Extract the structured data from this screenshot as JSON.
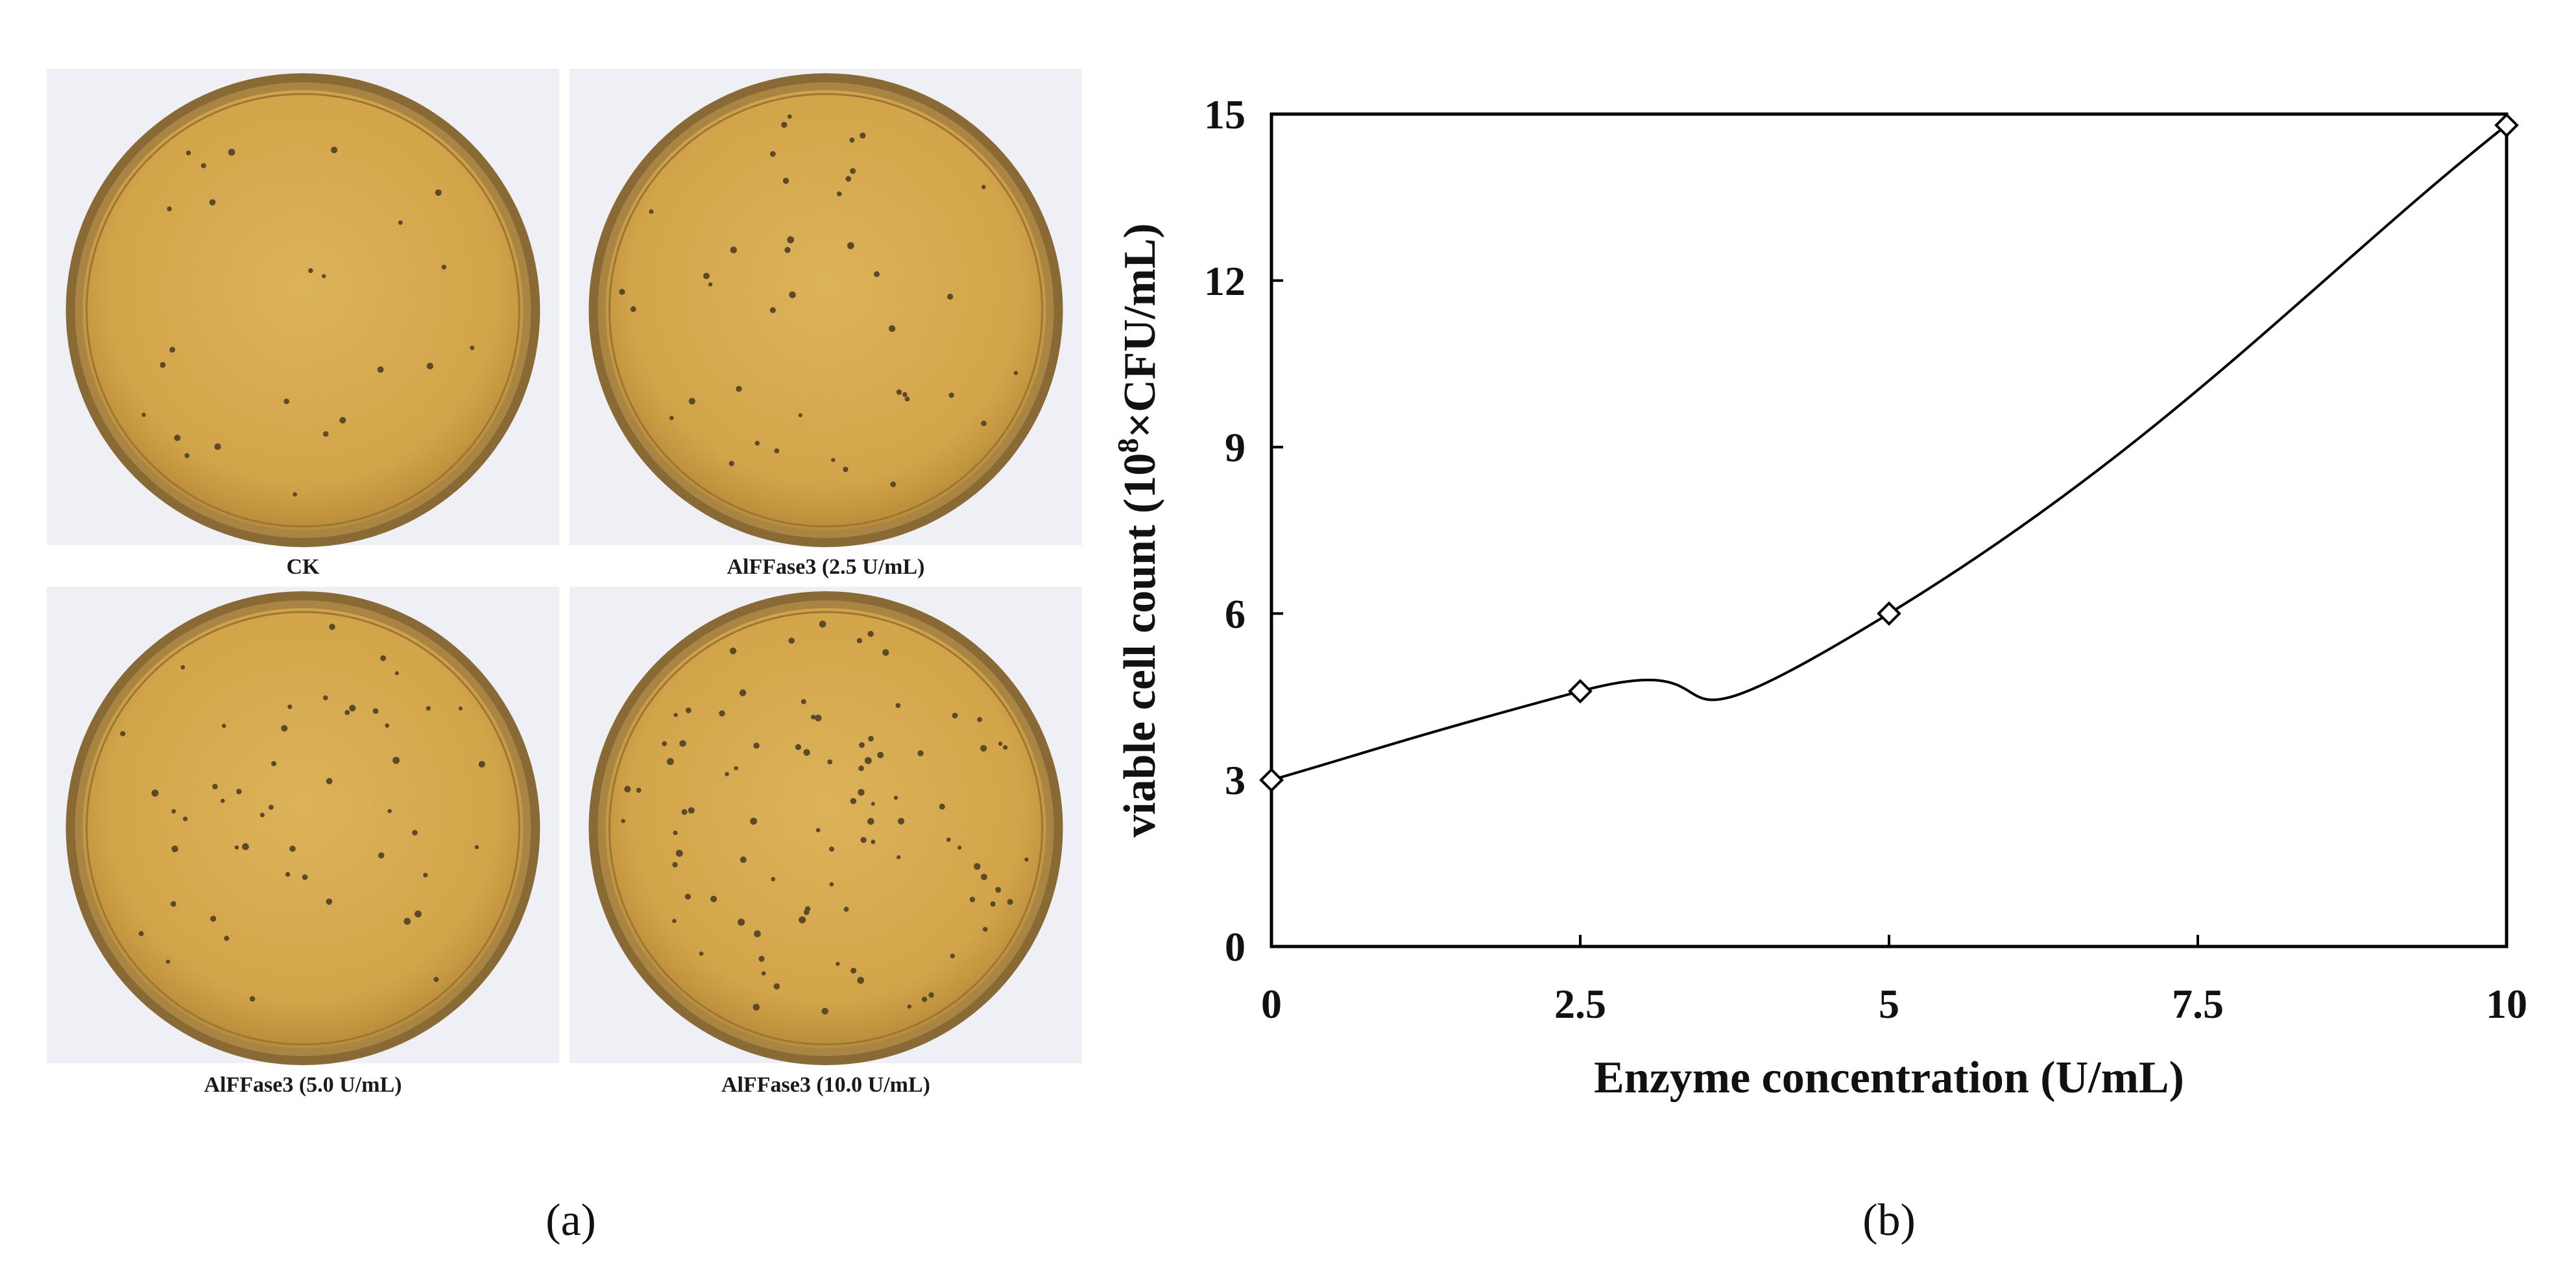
{
  "panels": {
    "a_label": "(a)",
    "b_label": "(b)"
  },
  "plates": [
    {
      "label": "CK",
      "colonies": 24,
      "seed": 11
    },
    {
      "label": "AlFFase3 (2.5 U/mL)",
      "colonies": 40,
      "seed": 27
    },
    {
      "label": "AlFFase3 (5.0 U/mL)",
      "colonies": 48,
      "seed": 53
    },
    {
      "label": "AlFFase3 (10.0 U/mL)",
      "colonies": 90,
      "seed": 89
    }
  ],
  "colors": {
    "agar": "#d3a54a",
    "agar_light": "#e2b963",
    "rim": "#8a6a34",
    "background": "#efeff6",
    "colony": "#5a4a2a",
    "line": "#000000"
  },
  "chart_data": {
    "type": "line",
    "title": "",
    "xlabel": "Enzyme concentration (U/mL)",
    "ylabel_prefix": "viable cell count (10",
    "ylabel_sup": "8",
    "ylabel_suffix": "×CFU/mL)",
    "xlim": [
      0,
      10
    ],
    "ylim": [
      0,
      15
    ],
    "x_ticks": [
      0,
      2.5,
      5,
      7.5,
      10
    ],
    "x_tick_labels": [
      "0",
      "2.5",
      "5",
      "7.5",
      "10"
    ],
    "y_ticks": [
      0,
      3,
      6,
      9,
      12,
      15
    ],
    "y_tick_labels": [
      "0",
      "3",
      "6",
      "9",
      "12",
      "15"
    ],
    "grid": false,
    "marker": "diamond",
    "series": [
      {
        "x": [
          0,
          2.5,
          5,
          10
        ],
        "y": [
          3.0,
          4.6,
          6.0,
          14.8
        ]
      }
    ]
  }
}
